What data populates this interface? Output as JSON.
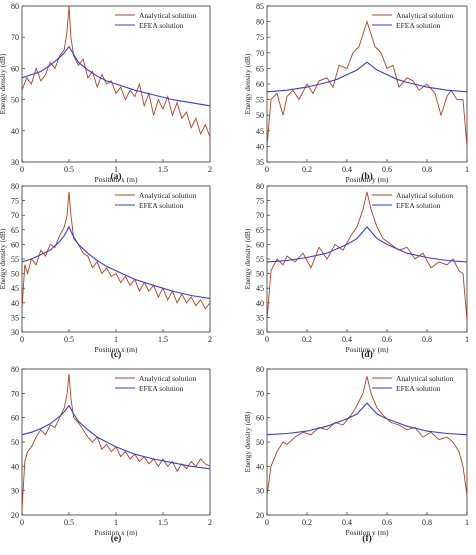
{
  "colors": {
    "analytical": "#b0411f",
    "efea": "#3a3ad6",
    "axis": "#333333"
  },
  "chart_data": [
    {
      "type": "line",
      "panel_label": "(a)",
      "xlabel": "Position x (m)",
      "ylabel": "Energy density (dB)",
      "xlim": [
        0,
        2
      ],
      "ylim": [
        30,
        80
      ],
      "xticks": [
        "0",
        "0.5",
        "1",
        "1.5",
        "2"
      ],
      "yticks": [
        "30",
        "40",
        "50",
        "60",
        "70",
        "80"
      ],
      "legend": {
        "position": "top-right",
        "entries": [
          "Analytical solution",
          "EFEA solution"
        ]
      },
      "series": [
        {
          "name": "Analytical solution",
          "x": [
            0,
            0.05,
            0.1,
            0.15,
            0.2,
            0.25,
            0.3,
            0.35,
            0.4,
            0.45,
            0.48,
            0.5,
            0.52,
            0.55,
            0.6,
            0.65,
            0.7,
            0.75,
            0.8,
            0.85,
            0.9,
            0.95,
            1.0,
            1.05,
            1.1,
            1.15,
            1.2,
            1.25,
            1.3,
            1.35,
            1.4,
            1.45,
            1.5,
            1.55,
            1.6,
            1.65,
            1.7,
            1.75,
            1.8,
            1.85,
            1.9,
            1.95,
            2.0
          ],
          "y": [
            53,
            57,
            55,
            60,
            56,
            58,
            62,
            60,
            64,
            66,
            72,
            80,
            70,
            64,
            61,
            63,
            57,
            59,
            54,
            58,
            55,
            56,
            52,
            54,
            50,
            53,
            51,
            55,
            48,
            52,
            45,
            50,
            47,
            51,
            45,
            49,
            44,
            46,
            41,
            44,
            39,
            42,
            38
          ]
        },
        {
          "name": "EFEA solution",
          "x": [
            0,
            0.1,
            0.2,
            0.3,
            0.4,
            0.45,
            0.5,
            0.55,
            0.6,
            0.7,
            0.8,
            0.9,
            1.0,
            1.2,
            1.4,
            1.6,
            1.8,
            2.0
          ],
          "y": [
            57,
            58,
            59,
            61,
            63.5,
            65,
            67,
            64.5,
            62,
            59.5,
            57.5,
            56,
            55,
            53,
            51.5,
            50,
            49,
            48
          ]
        }
      ]
    },
    {
      "type": "line",
      "panel_label": "(b)",
      "xlabel": "Position y (m)",
      "ylabel": "Energy density (dB)",
      "xlim": [
        0,
        1
      ],
      "ylim": [
        35,
        85
      ],
      "xticks": [
        "0",
        "0.2",
        "0.4",
        "0.6",
        "0.8",
        "1"
      ],
      "yticks": [
        "35",
        "40",
        "45",
        "50",
        "55",
        "60",
        "65",
        "70",
        "75",
        "80",
        "85"
      ],
      "legend": {
        "position": "top-right",
        "entries": [
          "Analytical solution",
          "EFEA solution"
        ]
      },
      "series": [
        {
          "name": "Analytical solution",
          "x": [
            0,
            0.02,
            0.05,
            0.08,
            0.1,
            0.13,
            0.16,
            0.2,
            0.23,
            0.26,
            0.3,
            0.33,
            0.36,
            0.4,
            0.43,
            0.46,
            0.48,
            0.5,
            0.52,
            0.54,
            0.57,
            0.6,
            0.63,
            0.66,
            0.7,
            0.73,
            0.76,
            0.8,
            0.84,
            0.87,
            0.9,
            0.92,
            0.95,
            0.98,
            1.0
          ],
          "y": [
            40,
            55,
            57,
            50,
            56,
            58,
            55,
            60,
            57,
            61,
            62,
            59,
            66,
            65,
            70,
            72,
            76,
            80,
            76,
            72,
            70,
            65,
            66,
            59,
            62,
            61,
            58,
            60,
            57,
            50,
            56,
            58,
            55,
            55,
            40
          ]
        },
        {
          "name": "EFEA solution",
          "x": [
            0,
            0.1,
            0.2,
            0.3,
            0.35,
            0.4,
            0.45,
            0.5,
            0.55,
            0.6,
            0.65,
            0.7,
            0.8,
            0.9,
            1.0
          ],
          "y": [
            57.5,
            58,
            59,
            60.5,
            61.5,
            63,
            64.5,
            67,
            64.5,
            63,
            61.5,
            60.5,
            59,
            58,
            57.5
          ]
        }
      ]
    },
    {
      "type": "line",
      "panel_label": "(c)",
      "xlabel": "Position x (m)",
      "ylabel": "Energy density (dB)",
      "xlim": [
        0,
        2
      ],
      "ylim": [
        30,
        80
      ],
      "xticks": [
        "0",
        "0.5",
        "1",
        "1.5",
        "2"
      ],
      "yticks": [
        "30",
        "35",
        "40",
        "45",
        "50",
        "55",
        "60",
        "65",
        "70",
        "75",
        "80"
      ],
      "legend": {
        "position": "top-right",
        "entries": [
          "Analytical solution",
          "EFEA solution"
        ]
      },
      "series": [
        {
          "name": "Analytical solution",
          "x": [
            0,
            0.03,
            0.06,
            0.1,
            0.15,
            0.2,
            0.25,
            0.3,
            0.35,
            0.4,
            0.45,
            0.48,
            0.5,
            0.52,
            0.55,
            0.6,
            0.65,
            0.7,
            0.75,
            0.8,
            0.85,
            0.9,
            0.95,
            1.0,
            1.05,
            1.1,
            1.15,
            1.2,
            1.25,
            1.3,
            1.35,
            1.4,
            1.45,
            1.5,
            1.55,
            1.6,
            1.65,
            1.7,
            1.75,
            1.8,
            1.85,
            1.9,
            1.95,
            2.0
          ],
          "y": [
            38,
            53,
            50,
            55,
            53,
            58,
            56,
            60,
            59,
            63,
            66,
            70,
            78,
            70,
            62,
            60,
            57,
            56,
            52,
            54,
            50,
            52,
            49,
            50,
            47,
            49,
            46,
            48,
            44,
            47,
            44,
            46,
            42,
            45,
            41,
            44,
            40,
            43,
            40,
            42,
            39,
            41,
            38,
            40
          ]
        },
        {
          "name": "EFEA solution",
          "x": [
            0,
            0.1,
            0.2,
            0.3,
            0.4,
            0.45,
            0.5,
            0.55,
            0.6,
            0.7,
            0.8,
            0.9,
            1.0,
            1.2,
            1.4,
            1.6,
            1.8,
            2.0
          ],
          "y": [
            54,
            55,
            56.5,
            58,
            61,
            63,
            66,
            62.5,
            60,
            57,
            54.5,
            52.5,
            51,
            48,
            46,
            44,
            42.5,
            41.5
          ]
        }
      ]
    },
    {
      "type": "line",
      "panel_label": "(d)",
      "xlabel": "Position y (m)",
      "ylabel": "Energy density (dB)",
      "xlim": [
        0,
        1
      ],
      "ylim": [
        30,
        80
      ],
      "xticks": [
        "0",
        "0.2",
        "0.4",
        "0.6",
        "0.8",
        "1"
      ],
      "yticks": [
        "30",
        "35",
        "40",
        "45",
        "50",
        "55",
        "60",
        "65",
        "70",
        "75",
        "80"
      ],
      "legend": {
        "position": "top-right",
        "entries": [
          "Analytical solution",
          "EFEA solution"
        ]
      },
      "series": [
        {
          "name": "Analytical solution",
          "x": [
            0,
            0.02,
            0.05,
            0.08,
            0.1,
            0.14,
            0.18,
            0.22,
            0.26,
            0.3,
            0.34,
            0.38,
            0.42,
            0.45,
            0.48,
            0.5,
            0.52,
            0.55,
            0.58,
            0.62,
            0.66,
            0.7,
            0.74,
            0.78,
            0.82,
            0.86,
            0.9,
            0.93,
            0.96,
            0.98,
            1.0
          ],
          "y": [
            34,
            51,
            55,
            53,
            56,
            54,
            57,
            52,
            59,
            55,
            60,
            58,
            63,
            66,
            72,
            78,
            72,
            66,
            62,
            60,
            58,
            59,
            55,
            57,
            52,
            54,
            53,
            55,
            51,
            50,
            34
          ]
        },
        {
          "name": "EFEA solution",
          "x": [
            0,
            0.1,
            0.2,
            0.3,
            0.35,
            0.4,
            0.45,
            0.5,
            0.55,
            0.6,
            0.65,
            0.7,
            0.8,
            0.9,
            1.0
          ],
          "y": [
            54,
            54.5,
            55.5,
            57,
            58.5,
            60,
            62,
            66,
            62,
            60,
            58.5,
            57,
            55.5,
            54.5,
            54
          ]
        }
      ]
    },
    {
      "type": "line",
      "panel_label": "(e)",
      "xlabel": "Position x (m)",
      "ylabel": "",
      "xlim": [
        0,
        2
      ],
      "ylim": [
        20,
        80
      ],
      "xticks": [
        "0",
        "0.5",
        "1",
        "1.5",
        "2"
      ],
      "yticks": [
        "20",
        "30",
        "40",
        "50",
        "60",
        "70",
        "80"
      ],
      "legend": {
        "position": "top-right",
        "entries": [
          "Analytical solution",
          "EFEA solution"
        ]
      },
      "series": [
        {
          "name": "Analytical solution",
          "x": [
            0,
            0.03,
            0.06,
            0.1,
            0.15,
            0.2,
            0.25,
            0.3,
            0.35,
            0.4,
            0.45,
            0.48,
            0.5,
            0.52,
            0.55,
            0.6,
            0.65,
            0.7,
            0.75,
            0.8,
            0.85,
            0.9,
            0.95,
            1.0,
            1.05,
            1.1,
            1.15,
            1.2,
            1.25,
            1.3,
            1.35,
            1.4,
            1.45,
            1.5,
            1.55,
            1.6,
            1.65,
            1.7,
            1.75,
            1.8,
            1.85,
            1.9,
            1.95,
            2.0
          ],
          "y": [
            22,
            42,
            46,
            48,
            52,
            55,
            53,
            57,
            56,
            60,
            64,
            70,
            78,
            68,
            60,
            58,
            55,
            52,
            50,
            52,
            47,
            49,
            46,
            48,
            44,
            46,
            43,
            45,
            42,
            44,
            41,
            43,
            40,
            43,
            40,
            42,
            38,
            41,
            39,
            42,
            40,
            43,
            41,
            40
          ]
        },
        {
          "name": "EFEA solution",
          "x": [
            0,
            0.1,
            0.2,
            0.3,
            0.4,
            0.45,
            0.5,
            0.55,
            0.6,
            0.7,
            0.8,
            0.9,
            1.0,
            1.2,
            1.4,
            1.6,
            1.8,
            2.0
          ],
          "y": [
            53,
            54,
            55.5,
            57.5,
            60.5,
            62.5,
            65,
            61.5,
            58.5,
            55,
            52,
            50,
            48,
            45,
            43,
            41.5,
            40,
            39
          ]
        }
      ]
    },
    {
      "type": "line",
      "panel_label": "(f)",
      "xlabel": "Position y (m)",
      "ylabel": "Energy density (dB)",
      "xlim": [
        0,
        1
      ],
      "ylim": [
        20,
        80
      ],
      "xticks": [
        "0",
        "0.2",
        "0.4",
        "0.6",
        "0.8",
        "1"
      ],
      "yticks": [
        "20",
        "30",
        "40",
        "50",
        "60",
        "70",
        "80"
      ],
      "legend": {
        "position": "top-right",
        "entries": [
          "Analytical solution",
          "EFEA solution"
        ]
      },
      "series": [
        {
          "name": "Analytical solution",
          "x": [
            0,
            0.02,
            0.05,
            0.08,
            0.1,
            0.14,
            0.18,
            0.22,
            0.26,
            0.3,
            0.34,
            0.38,
            0.42,
            0.45,
            0.48,
            0.5,
            0.52,
            0.55,
            0.58,
            0.62,
            0.66,
            0.7,
            0.74,
            0.78,
            0.82,
            0.86,
            0.9,
            0.93,
            0.96,
            0.98,
            1.0
          ],
          "y": [
            28,
            40,
            46,
            50,
            49,
            52,
            54,
            53,
            56,
            55,
            58,
            57,
            61,
            65,
            70,
            77,
            70,
            64,
            61,
            58,
            57,
            55,
            56,
            52,
            54,
            51,
            52,
            50,
            46,
            40,
            28
          ]
        },
        {
          "name": "EFEA solution",
          "x": [
            0,
            0.1,
            0.2,
            0.3,
            0.35,
            0.4,
            0.45,
            0.5,
            0.55,
            0.6,
            0.65,
            0.7,
            0.8,
            0.9,
            1.0
          ],
          "y": [
            53,
            53.5,
            54.5,
            56.5,
            58,
            59.5,
            61.5,
            66,
            61.5,
            59.5,
            58,
            56.5,
            54.5,
            53.5,
            53
          ]
        }
      ]
    }
  ]
}
